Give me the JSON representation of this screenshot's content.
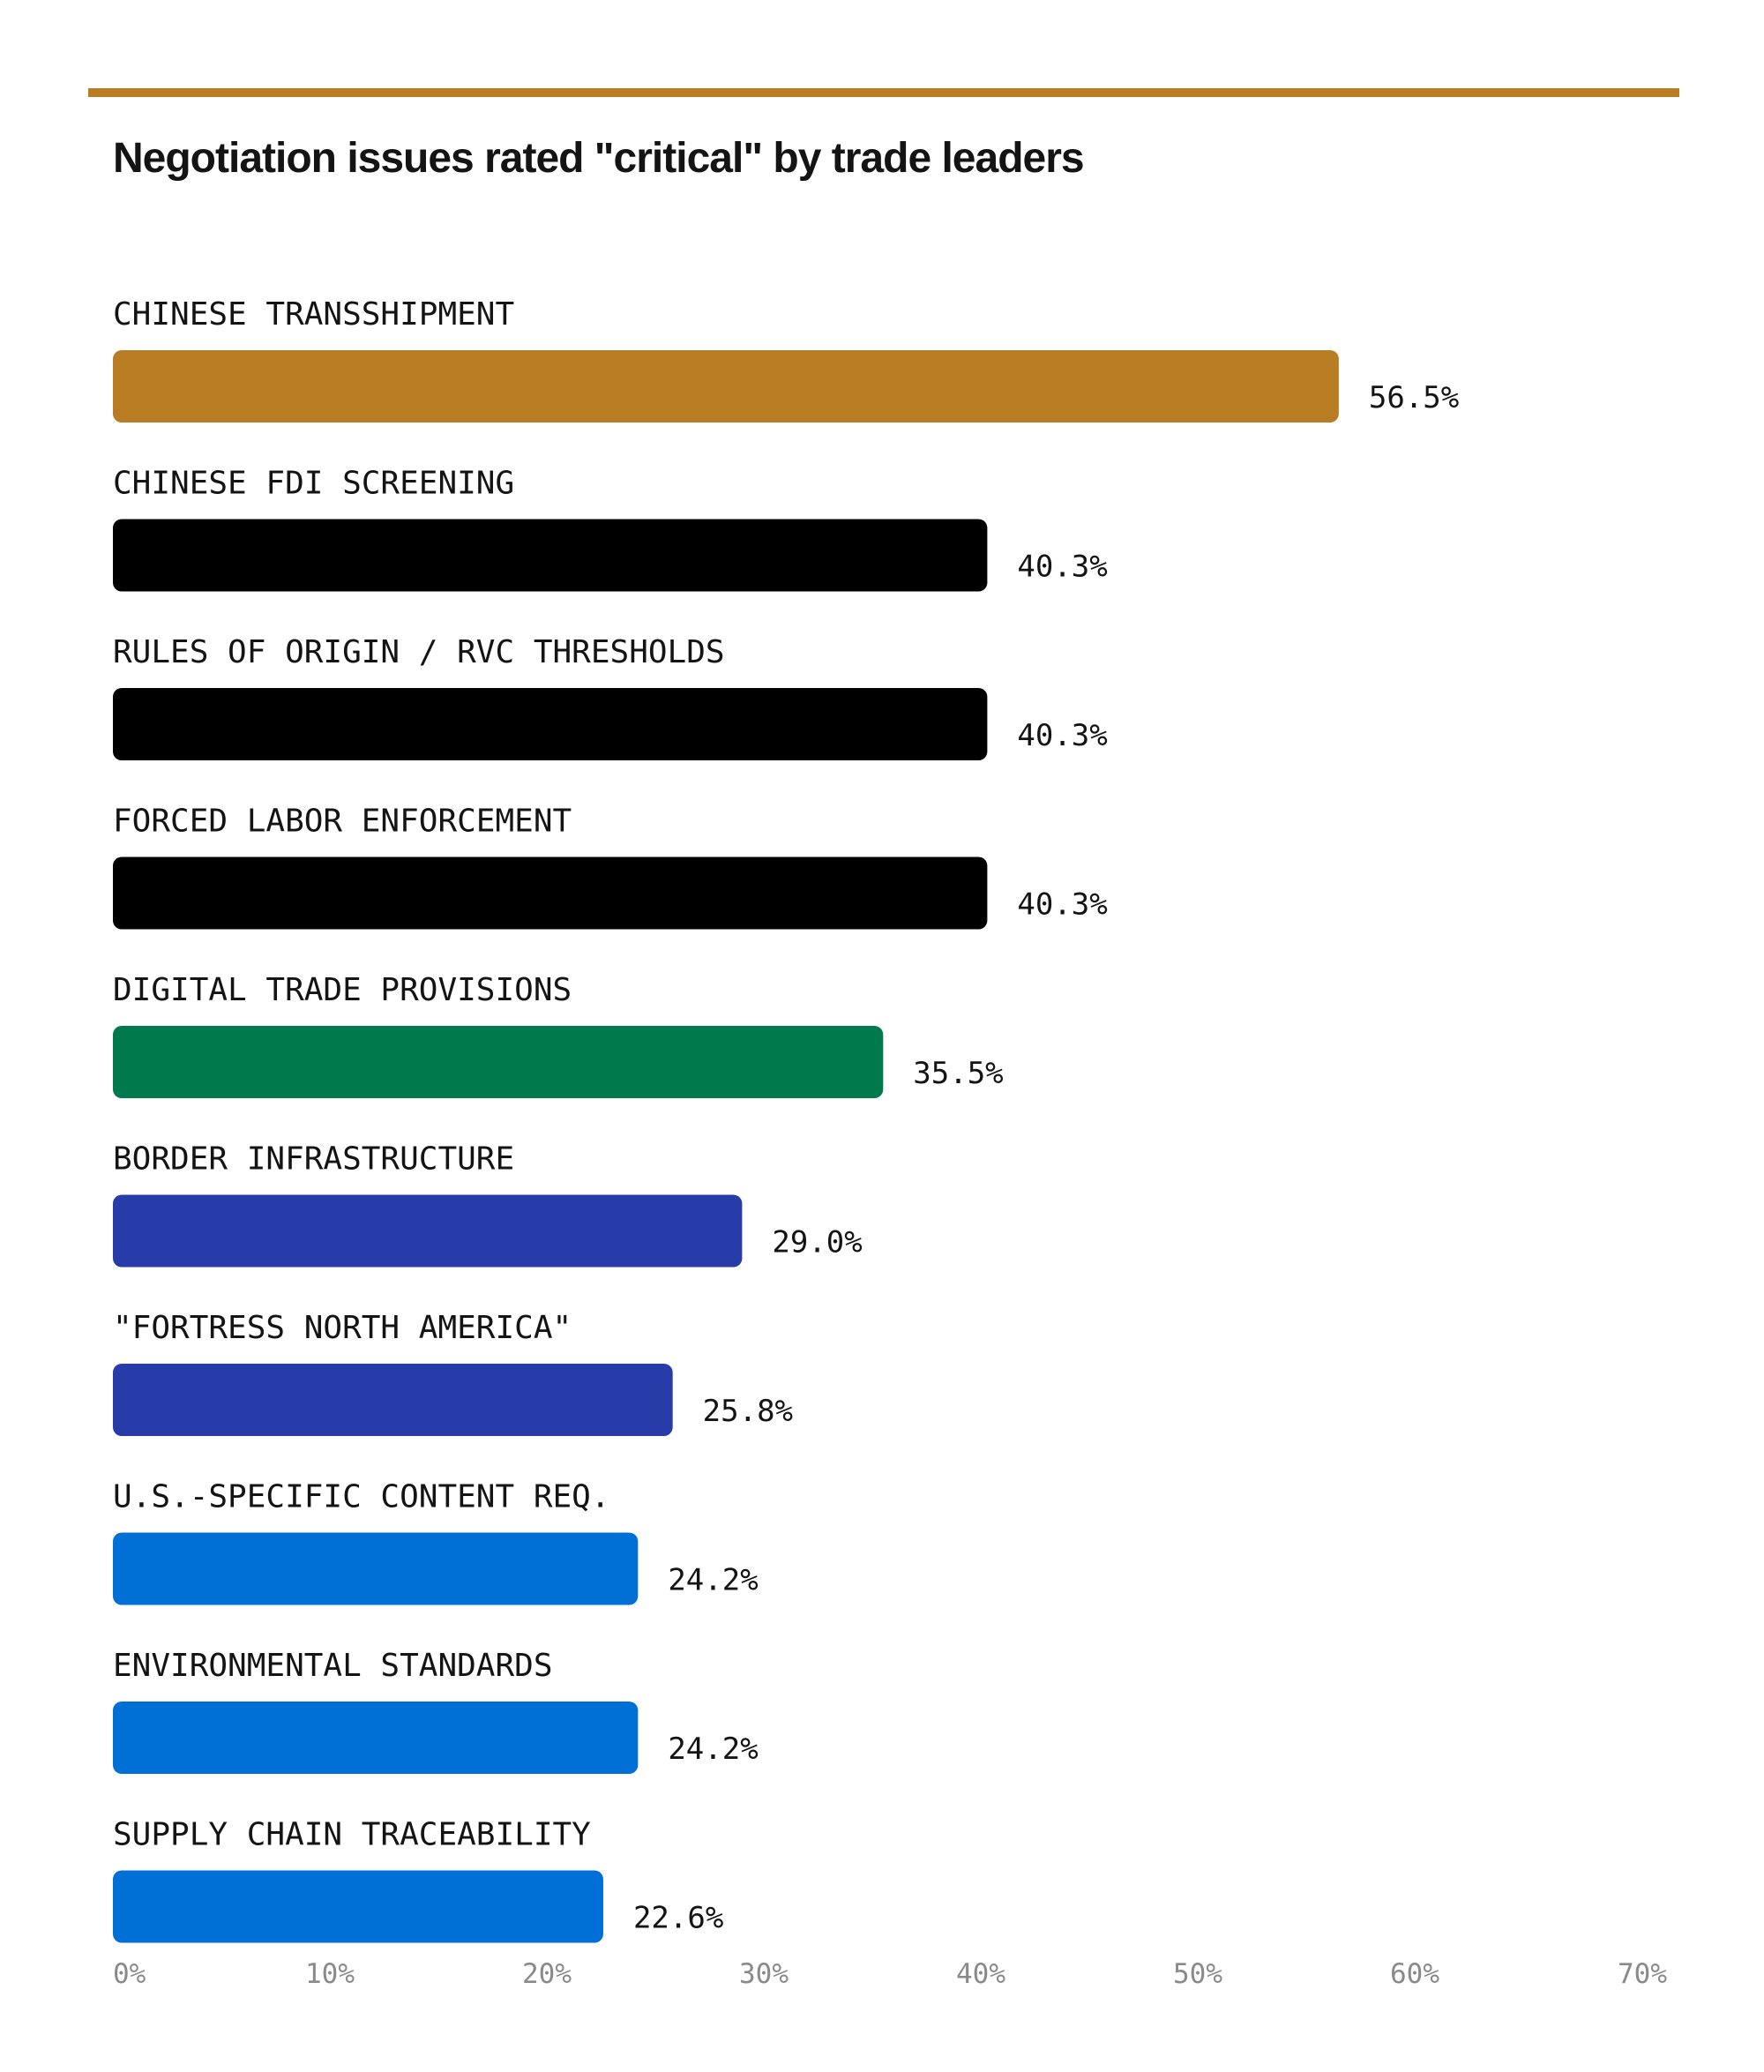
{
  "colors": {
    "rule": "#b87c22",
    "ochre": "#b87c22",
    "black": "#000000",
    "green": "#007a4d",
    "navy": "#273ca8",
    "blue": "#006fd6"
  },
  "chart_data": {
    "type": "bar",
    "orientation": "horizontal",
    "title": "Negotiation issues rated \"critical\" by trade leaders",
    "xlim": [
      0,
      70
    ],
    "grid": false,
    "categories": [
      "CHINESE TRANSSHIPMENT",
      "CHINESE FDI SCREENING",
      "RULES OF ORIGIN / RVC THRESHOLDS",
      "FORCED LABOR ENFORCEMENT",
      "DIGITAL TRADE PROVISIONS",
      "BORDER INFRASTRUCTURE",
      "\"FORTRESS NORTH AMERICA\"",
      "U.S.-SPECIFIC CONTENT REQ.",
      "ENVIRONMENTAL STANDARDS",
      "SUPPLY CHAIN TRACEABILITY"
    ],
    "values": [
      56.5,
      40.3,
      40.3,
      40.3,
      35.5,
      29.0,
      25.8,
      24.2,
      24.2,
      22.6
    ],
    "value_labels": [
      "56.5%",
      "40.3%",
      "40.3%",
      "40.3%",
      "35.5%",
      "29.0%",
      "25.8%",
      "24.2%",
      "24.2%",
      "22.6%"
    ],
    "bar_colors": [
      "#b87c22",
      "#000000",
      "#000000",
      "#000000",
      "#007a4d",
      "#273ca8",
      "#273ca8",
      "#006fd6",
      "#006fd6",
      "#006fd6"
    ],
    "x_ticks": [
      0,
      10,
      20,
      30,
      40,
      50,
      60,
      70
    ],
    "x_tick_labels": [
      "0%",
      "10%",
      "20%",
      "30%",
      "40%",
      "50%",
      "60%",
      "70%"
    ]
  }
}
